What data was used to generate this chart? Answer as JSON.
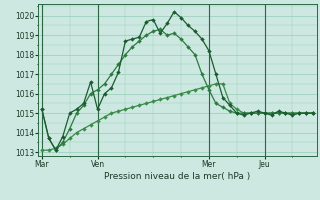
{
  "xlabel": "Pression niveau de la mer( hPa )",
  "background_color": "#cce8e0",
  "plot_bg_color": "#cce8e0",
  "grid_color": "#99ccbb",
  "line_color_1": "#1a5c30",
  "line_color_2": "#2d7a40",
  "line_color_3": "#3a8a4a",
  "ylim": [
    1012.8,
    1020.6
  ],
  "yticks": [
    1013,
    1014,
    1015,
    1016,
    1017,
    1018,
    1019,
    1020
  ],
  "xtick_labels": [
    "Mar",
    "Ven",
    "Mer",
    "Jeu"
  ],
  "xtick_positions": [
    0,
    8,
    24,
    32
  ],
  "vline_positions": [
    0,
    8,
    24,
    32
  ],
  "total_points": 40,
  "line1": [
    1015.2,
    1013.7,
    1013.1,
    1013.8,
    1015.0,
    1015.2,
    1015.5,
    1016.6,
    1015.2,
    1016.0,
    1016.3,
    1017.1,
    1018.7,
    1018.8,
    1018.9,
    1019.7,
    1019.8,
    1019.1,
    1019.6,
    1020.2,
    1019.9,
    1019.5,
    1019.2,
    1018.8,
    1018.2,
    1017.0,
    1015.8,
    1015.4,
    1015.0,
    1014.9,
    1015.0,
    1015.1,
    1015.0,
    1014.9,
    1015.1,
    1015.0,
    1014.9,
    1015.0,
    1015.0,
    1015.0
  ],
  "line2": [
    1015.2,
    1013.7,
    1013.1,
    1013.5,
    1014.2,
    1015.0,
    1015.4,
    1016.0,
    1016.2,
    1016.5,
    1017.0,
    1017.5,
    1018.0,
    1018.4,
    1018.7,
    1019.0,
    1019.2,
    1019.3,
    1019.0,
    1019.1,
    1018.8,
    1018.4,
    1018.0,
    1017.0,
    1016.2,
    1015.5,
    1015.3,
    1015.1,
    1015.0,
    1015.0,
    1015.0,
    1015.0,
    1015.0,
    1015.0,
    1015.0,
    1015.0,
    1015.0,
    1015.0,
    1015.0,
    1015.0
  ],
  "line3": [
    1013.1,
    1013.1,
    1013.2,
    1013.4,
    1013.7,
    1014.0,
    1014.2,
    1014.4,
    1014.6,
    1014.8,
    1015.0,
    1015.1,
    1015.2,
    1015.3,
    1015.4,
    1015.5,
    1015.6,
    1015.7,
    1015.8,
    1015.9,
    1016.0,
    1016.1,
    1016.2,
    1016.3,
    1016.4,
    1016.5,
    1016.5,
    1015.5,
    1015.2,
    1015.0,
    1015.0,
    1015.0,
    1015.0,
    1015.0,
    1015.0,
    1015.0,
    1015.0,
    1015.0,
    1015.0,
    1015.0
  ],
  "marker": "D",
  "marker_size": 2.0,
  "linewidth": 0.9
}
